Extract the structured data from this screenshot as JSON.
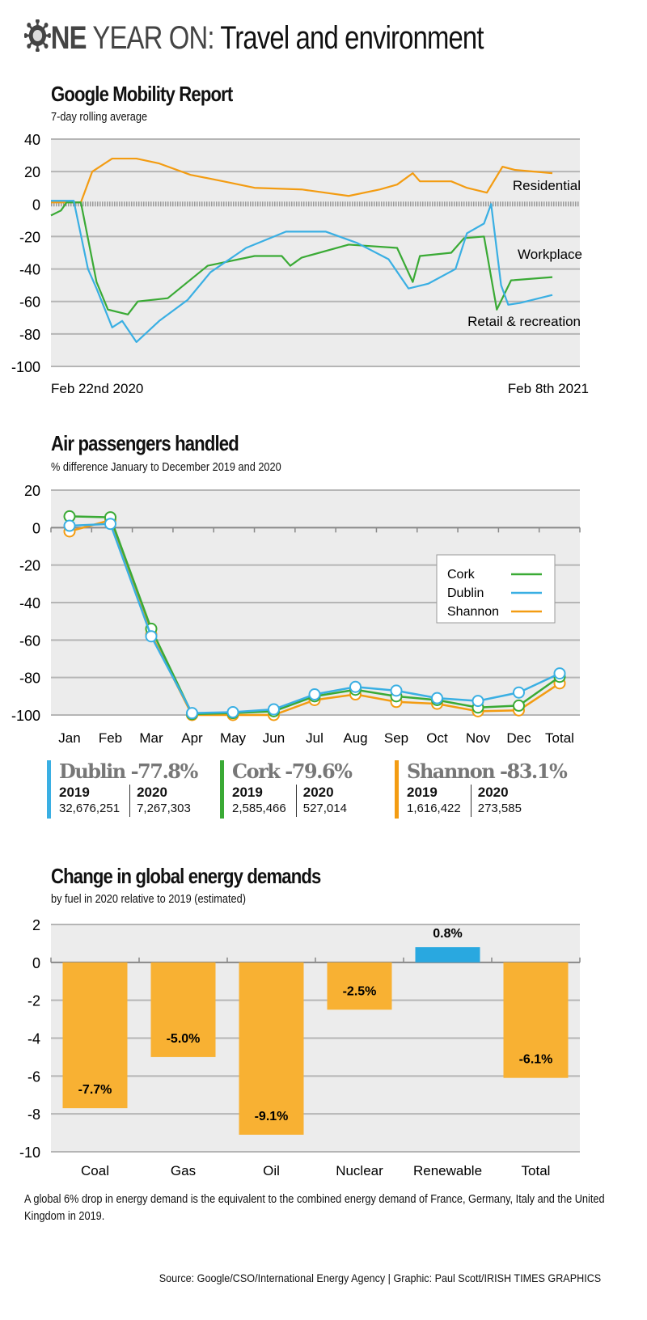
{
  "header": {
    "title_bold": "NE",
    "title_mid": " YEAR ON:",
    "title_rest": " Travel and environment",
    "logo_icon": "virus-icon"
  },
  "colors": {
    "green": "#3aaa35",
    "blue": "#3aafe3",
    "orange": "#f39c12",
    "bar": "#f8b133",
    "bar_positive": "#29a8e0",
    "plot_bg": "#ececec",
    "grid": "#b5b5b5"
  },
  "mobility": {
    "title": "Google Mobility Report",
    "subtitle": "7-day rolling average",
    "x_start_label": "Feb 22nd 2020",
    "x_end_label": "Feb 8th 2021",
    "chart_data": {
      "type": "line",
      "ylim": [
        -100,
        40
      ],
      "yticks": [
        "40",
        "20",
        "0",
        "-20",
        "-40",
        "-60",
        "-80",
        "-100"
      ],
      "xlim": [
        "2020-02-22",
        "2021-02-08"
      ],
      "grid": true,
      "series": [
        {
          "name": "Residential",
          "color": "#f39c12",
          "points": [
            [
              "2020-02-22",
              1
            ],
            [
              "2020-03-14",
              1
            ],
            [
              "2020-03-22",
              20
            ],
            [
              "2020-04-05",
              28
            ],
            [
              "2020-04-22",
              28
            ],
            [
              "2020-05-08",
              25
            ],
            [
              "2020-05-30",
              18
            ],
            [
              "2020-06-22",
              14
            ],
            [
              "2020-07-14",
              10
            ],
            [
              "2020-08-16",
              9
            ],
            [
              "2020-09-18",
              5
            ],
            [
              "2020-10-10",
              9
            ],
            [
              "2020-10-22",
              12
            ],
            [
              "2020-11-02",
              19
            ],
            [
              "2020-11-07",
              14
            ],
            [
              "2020-11-29",
              14
            ],
            [
              "2020-12-10",
              10
            ],
            [
              "2020-12-24",
              7
            ],
            [
              "2021-01-04",
              23
            ],
            [
              "2021-01-13",
              21
            ],
            [
              "2021-02-08",
              19
            ]
          ]
        },
        {
          "name": "Workplace",
          "color": "#3aaa35",
          "points": [
            [
              "2020-02-22",
              -7
            ],
            [
              "2020-02-29",
              -4
            ],
            [
              "2020-03-04",
              1
            ],
            [
              "2020-03-14",
              1
            ],
            [
              "2020-03-25",
              -48
            ],
            [
              "2020-04-02",
              -65
            ],
            [
              "2020-04-16",
              -68
            ],
            [
              "2020-04-23",
              -60
            ],
            [
              "2020-05-14",
              -58
            ],
            [
              "2020-06-11",
              -38
            ],
            [
              "2020-07-14",
              -32
            ],
            [
              "2020-08-02",
              -32
            ],
            [
              "2020-08-08",
              -38
            ],
            [
              "2020-08-16",
              -33
            ],
            [
              "2020-09-18",
              -25
            ],
            [
              "2020-10-22",
              -27
            ],
            [
              "2020-11-02",
              -48
            ],
            [
              "2020-11-07",
              -32
            ],
            [
              "2020-11-29",
              -30
            ],
            [
              "2020-12-08",
              -21
            ],
            [
              "2020-12-22",
              -20
            ],
            [
              "2020-12-31",
              -65
            ],
            [
              "2021-01-10",
              -47
            ],
            [
              "2021-02-08",
              -45
            ]
          ]
        },
        {
          "name": "Retail & recreation",
          "color": "#3aafe3",
          "points": [
            [
              "2020-02-22",
              2
            ],
            [
              "2020-03-09",
              2
            ],
            [
              "2020-03-19",
              -40
            ],
            [
              "2020-03-25",
              -52
            ],
            [
              "2020-04-05",
              -76
            ],
            [
              "2020-04-12",
              -72
            ],
            [
              "2020-04-22",
              -85
            ],
            [
              "2020-05-08",
              -72
            ],
            [
              "2020-05-28",
              -59
            ],
            [
              "2020-06-13",
              -42
            ],
            [
              "2020-07-08",
              -27
            ],
            [
              "2020-08-05",
              -17
            ],
            [
              "2020-09-02",
              -17
            ],
            [
              "2020-09-24",
              -24
            ],
            [
              "2020-10-16",
              -34
            ],
            [
              "2020-10-30",
              -52
            ],
            [
              "2020-11-13",
              -49
            ],
            [
              "2020-12-02",
              -40
            ],
            [
              "2020-12-10",
              -18
            ],
            [
              "2020-12-22",
              -12
            ],
            [
              "2020-12-27",
              0
            ],
            [
              "2021-01-03",
              -50
            ],
            [
              "2021-01-08",
              -62
            ],
            [
              "2021-01-16",
              -61
            ],
            [
              "2021-02-08",
              -56
            ]
          ]
        }
      ]
    }
  },
  "air": {
    "title": "Air passengers handled",
    "subtitle": "% difference January to December 2019 and 2020",
    "chart_data": {
      "type": "line",
      "categories": [
        "Jan",
        "Feb",
        "Mar",
        "Apr",
        "May",
        "Jun",
        "Jul",
        "Aug",
        "Sep",
        "Oct",
        "Nov",
        "Dec",
        "Total"
      ],
      "ylim": [
        -100,
        20
      ],
      "yticks": [
        "20",
        "0",
        "-20",
        "-40",
        "-60",
        "-80",
        "-100"
      ],
      "grid": true,
      "legend": "right",
      "series": [
        {
          "name": "Shannon",
          "color": "#f39c12",
          "values": [
            -2,
            4,
            -57,
            -100,
            -100,
            -100,
            -92,
            -89,
            -93,
            -94,
            -98,
            -97.5,
            -83.1
          ]
        },
        {
          "name": "Cork",
          "color": "#3aaa35",
          "values": [
            6,
            5.5,
            -54,
            -99.5,
            -99,
            -98,
            -90,
            -86.5,
            -90,
            -92,
            -96,
            -95,
            -79.6
          ]
        },
        {
          "name": "Dublin",
          "color": "#3aafe3",
          "values": [
            1,
            2,
            -58,
            -99,
            -98.5,
            -97,
            -89,
            -85,
            -87,
            -91,
            -92.5,
            -88,
            -77.8
          ]
        }
      ],
      "legend_order": [
        "Cork",
        "Dublin",
        "Shannon"
      ]
    },
    "stats": [
      {
        "title": "Dublin -77.8%",
        "color": "#3aafe3",
        "y1": "2019",
        "v1": "32,676,251",
        "y2": "2020",
        "v2": "7,267,303"
      },
      {
        "title": "Cork -79.6%",
        "color": "#3aaa35",
        "y1": "2019",
        "v1": "2,585,466",
        "y2": "2020",
        "v2": "527,014"
      },
      {
        "title": "Shannon -83.1%",
        "color": "#f39c12",
        "y1": "2019",
        "v1": "1,616,422",
        "y2": "2020",
        "v2": "273,585"
      }
    ]
  },
  "energy": {
    "title": "Change in global energy demands",
    "subtitle": "by fuel in 2020 relative to 2019 (estimated)",
    "chart_data": {
      "type": "bar",
      "categories": [
        "Coal",
        "Gas",
        "Oil",
        "Nuclear",
        "Renewable",
        "Total"
      ],
      "values": [
        -7.7,
        -5.0,
        -9.1,
        -2.5,
        0.8,
        -6.1
      ],
      "labels": [
        "-7.7%",
        "-5.0%",
        "-9.1%",
        "-2.5%",
        "0.8%",
        "-6.1%"
      ],
      "ylim": [
        -10,
        2
      ],
      "yticks": [
        "2",
        "0",
        "-2",
        "-4",
        "-6",
        "-8",
        "-10"
      ],
      "grid": true
    },
    "note": "A global 6% drop in energy demand is the equivalent to the combined energy demand of France, Germany, Italy and the United Kingdom in 2019."
  },
  "footer": {
    "source": "Source: Google/CSO/International Energy Agency  |  Graphic: Paul Scott/IRISH TIMES GRAPHICS"
  }
}
